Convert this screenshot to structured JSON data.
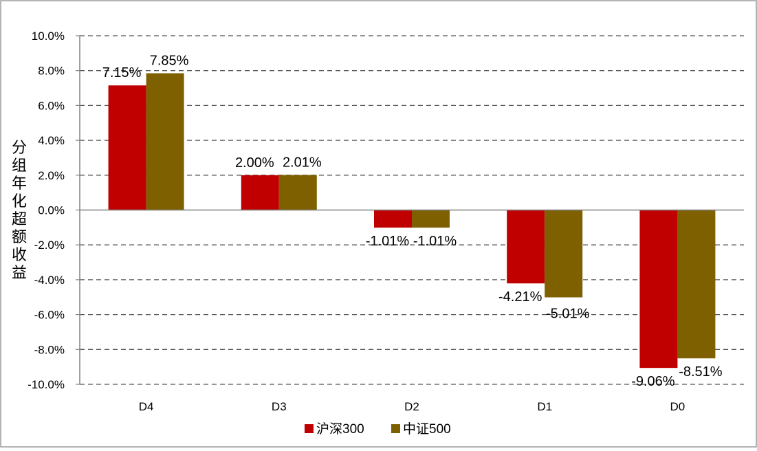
{
  "chart_data": {
    "type": "bar",
    "categories": [
      "D4",
      "D3",
      "D2",
      "D1",
      "D0"
    ],
    "series": [
      {
        "name": "沪深300",
        "color": "#C00000",
        "values": [
          7.15,
          2.0,
          -1.01,
          -4.21,
          -9.06
        ],
        "labels": [
          "7.15%",
          "2.00%",
          "-1.01%",
          "-4.21%",
          "-9.06%"
        ]
      },
      {
        "name": "中证500",
        "color": "#7F6000",
        "values": [
          7.85,
          2.01,
          -1.01,
          -5.01,
          -8.51
        ],
        "labels": [
          "7.85%",
          "2.01%",
          "-1.01%",
          "-5.01%",
          "-8.51%"
        ]
      }
    ],
    "ylabel": "分组年化超额收益",
    "ylim": [
      -10,
      10
    ],
    "yticks": [
      "10.0%",
      "8.0%",
      "6.0%",
      "4.0%",
      "2.0%",
      "0.0%",
      "-2.0%",
      "-4.0%",
      "-6.0%",
      "-8.0%",
      "-10.0%"
    ],
    "ytick_values": [
      10,
      8,
      6,
      4,
      2,
      0,
      -2,
      -4,
      -6,
      -8,
      -10
    ],
    "grid": "horizontal-dashed",
    "legend_position": "bottom-center"
  }
}
